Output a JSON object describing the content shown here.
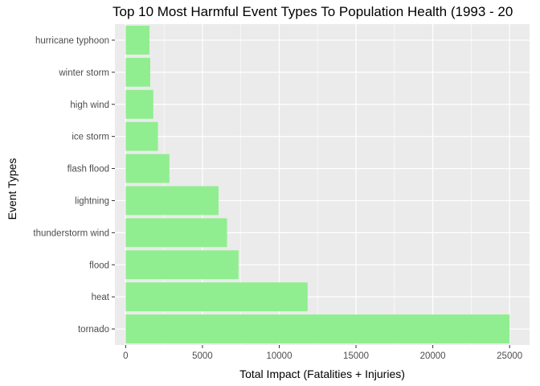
{
  "chart_data": {
    "type": "bar",
    "orientation": "horizontal",
    "title": "Top 10 Most Harmful Event Types To Population Health (1993 - 20",
    "xlabel": "Total Impact (Fatalities + Injuries)",
    "ylabel": "Event Types",
    "categories": [
      "tornado",
      "heat",
      "flood",
      "thunderstorm wind",
      "lightning",
      "flash flood",
      "ice storm",
      "high wind",
      "winter storm",
      "hurricane typhoon"
    ],
    "values": [
      25000,
      11850,
      7350,
      6600,
      6050,
      2850,
      2100,
      1800,
      1600,
      1550
    ],
    "xlim": [
      -700,
      26300
    ],
    "xticks": [
      0,
      5000,
      10000,
      15000,
      20000,
      25000
    ],
    "xtick_labels": [
      "0",
      "5000",
      "10000",
      "15000",
      "20000",
      "25000"
    ],
    "grid": true,
    "bar_color": "#90ee90",
    "panel_color": "#ebebeb",
    "grid_color": "#ffffff"
  }
}
